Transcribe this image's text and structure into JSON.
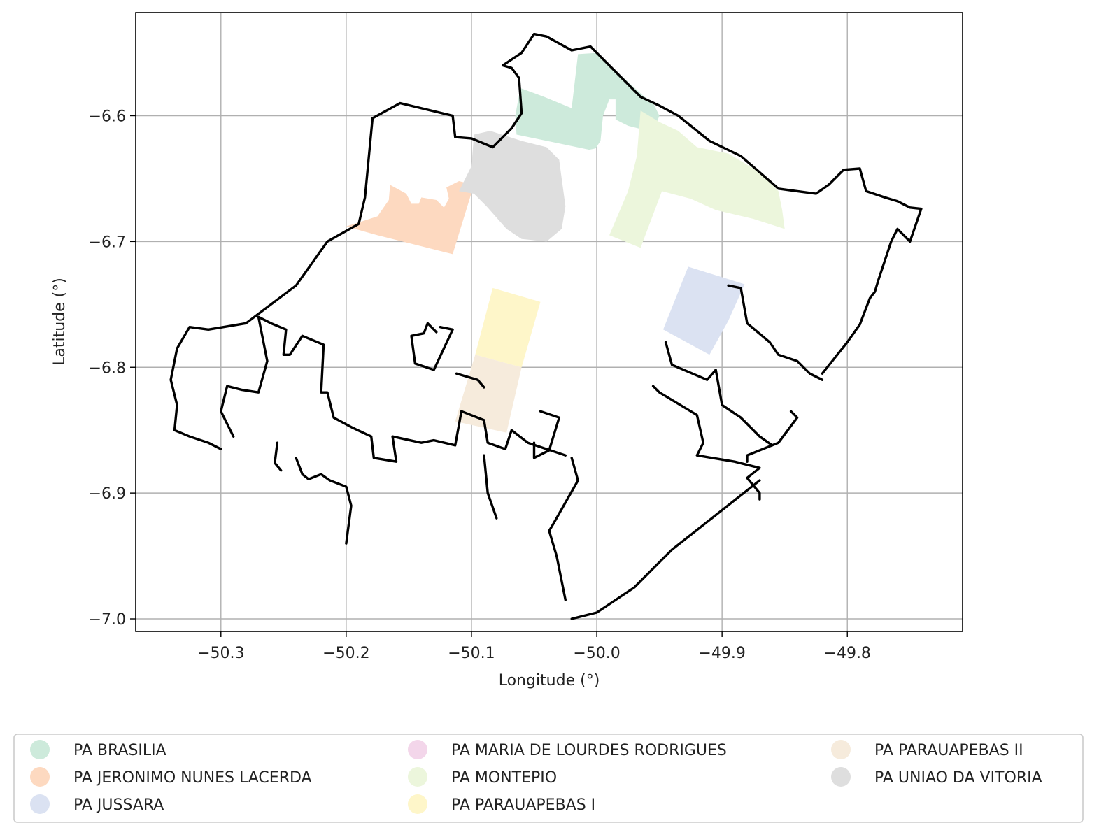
{
  "figure": {
    "xlabel": "Longitude (°)",
    "ylabel": "Latitude (°)"
  },
  "chart_data": {
    "type": "choropleth-map",
    "xlim": [
      -50.368,
      -49.708
    ],
    "ylim": [
      -7.01,
      -6.518
    ],
    "grid": true,
    "legend_placement": "bottom (below plot, 3 columns)",
    "x_ticks": [
      {
        "value": -50.3,
        "label": "−50.3"
      },
      {
        "value": -50.2,
        "label": "−50.2"
      },
      {
        "value": -50.1,
        "label": "−50.1"
      },
      {
        "value": -50.0,
        "label": "−50.0"
      },
      {
        "value": -49.9,
        "label": "−49.9"
      },
      {
        "value": -49.8,
        "label": "−49.8"
      }
    ],
    "y_ticks": [
      {
        "value": -6.6,
        "label": "−6.6"
      },
      {
        "value": -6.7,
        "label": "−6.7"
      },
      {
        "value": -6.8,
        "label": "−6.8"
      },
      {
        "value": -6.9,
        "label": "−6.9"
      },
      {
        "value": -7.0,
        "label": "−7.0"
      }
    ],
    "regions": [
      {
        "name": "PA BRASILIA",
        "color": "#cdeadb",
        "polygons": [
          [
            [
              -50.061,
              -6.578
            ],
            [
              -50.042,
              -6.585
            ],
            [
              -50.02,
              -6.594
            ],
            [
              -50.015,
              -6.551
            ],
            [
              -50.0,
              -6.55
            ],
            [
              -49.985,
              -6.564
            ],
            [
              -49.963,
              -6.584
            ],
            [
              -49.955,
              -6.59
            ],
            [
              -49.95,
              -6.6
            ],
            [
              -49.955,
              -6.613
            ],
            [
              -49.975,
              -6.608
            ],
            [
              -49.985,
              -6.603
            ],
            [
              -49.985,
              -6.587
            ],
            [
              -49.99,
              -6.587
            ],
            [
              -49.995,
              -6.6
            ],
            [
              -49.997,
              -6.62
            ],
            [
              -50.001,
              -6.626
            ],
            [
              -50.006,
              -6.627
            ],
            [
              -50.03,
              -6.622
            ],
            [
              -50.064,
              -6.615
            ],
            [
              -50.065,
              -6.6
            ]
          ]
        ]
      },
      {
        "name": "PA JERONIMO NUNES LACERDA",
        "color": "#fdd9c0",
        "polygons": [
          [
            [
              -50.165,
              -6.655
            ],
            [
              -50.152,
              -6.662
            ],
            [
              -50.148,
              -6.67
            ],
            [
              -50.142,
              -6.67
            ],
            [
              -50.14,
              -6.665
            ],
            [
              -50.128,
              -6.667
            ],
            [
              -50.122,
              -6.673
            ],
            [
              -50.118,
              -6.666
            ],
            [
              -50.12,
              -6.657
            ],
            [
              -50.11,
              -6.652
            ],
            [
              -50.098,
              -6.655
            ],
            [
              -50.115,
              -6.71
            ],
            [
              -50.175,
              -6.695
            ],
            [
              -50.2,
              -6.688
            ],
            [
              -50.175,
              -6.68
            ],
            [
              -50.166,
              -6.667
            ]
          ]
        ]
      },
      {
        "name": "PA JUSSARA",
        "color": "#dbe2f2",
        "polygons": [
          [
            [
              -49.927,
              -6.72
            ],
            [
              -49.947,
              -6.77
            ],
            [
              -49.91,
              -6.79
            ],
            [
              -49.895,
              -6.763
            ],
            [
              -49.882,
              -6.734
            ]
          ]
        ]
      },
      {
        "name": "PA MARIA DE LOURDES RODRIGUES",
        "color": "#f3d6ea",
        "polygons": []
      },
      {
        "name": "PA MONTEPIO",
        "color": "#ecf6dc",
        "polygons": [
          [
            [
              -49.965,
              -6.596
            ],
            [
              -49.95,
              -6.605
            ],
            [
              -49.935,
              -6.612
            ],
            [
              -49.92,
              -6.625
            ],
            [
              -49.895,
              -6.63
            ],
            [
              -49.87,
              -6.645
            ],
            [
              -49.855,
              -6.66
            ],
            [
              -49.852,
              -6.675
            ],
            [
              -49.85,
              -6.69
            ],
            [
              -49.875,
              -6.682
            ],
            [
              -49.905,
              -6.675
            ],
            [
              -49.925,
              -6.666
            ],
            [
              -49.948,
              -6.66
            ],
            [
              -49.965,
              -6.705
            ],
            [
              -49.99,
              -6.695
            ],
            [
              -49.975,
              -6.66
            ],
            [
              -49.968,
              -6.632
            ]
          ]
        ]
      },
      {
        "name": "PA PARAUAPEBAS I",
        "color": "#fef6c9",
        "polygons": [
          [
            [
              -50.083,
              -6.737
            ],
            [
              -50.045,
              -6.748
            ],
            [
              -50.06,
              -6.8
            ],
            [
              -50.097,
              -6.79
            ]
          ]
        ]
      },
      {
        "name": "PA PARAUAPEBAS II",
        "color": "#f6ebdc",
        "polygons": [
          [
            [
              -50.097,
              -6.79
            ],
            [
              -50.06,
              -6.8
            ],
            [
              -50.072,
              -6.852
            ],
            [
              -50.113,
              -6.843
            ]
          ]
        ]
      },
      {
        "name": "PA UNIAO DA VITORIA",
        "color": "#dedede",
        "polygons": [
          [
            [
              -50.098,
              -6.615
            ],
            [
              -50.085,
              -6.612
            ],
            [
              -50.06,
              -6.62
            ],
            [
              -50.04,
              -6.625
            ],
            [
              -50.03,
              -6.635
            ],
            [
              -50.028,
              -6.65
            ],
            [
              -50.025,
              -6.672
            ],
            [
              -50.028,
              -6.69
            ],
            [
              -50.04,
              -6.7
            ],
            [
              -50.06,
              -6.698
            ],
            [
              -50.072,
              -6.69
            ],
            [
              -50.088,
              -6.672
            ],
            [
              -50.098,
              -6.662
            ],
            [
              -50.11,
              -6.66
            ],
            [
              -50.1,
              -6.64
            ]
          ]
        ]
      }
    ],
    "boundary": {
      "color": "#000000",
      "lines": [
        [
          [
            -50.179,
            -6.602
          ],
          [
            -50.157,
            -6.59
          ],
          [
            -50.115,
            -6.6
          ],
          [
            -50.113,
            -6.617
          ],
          [
            -50.1,
            -6.618
          ],
          [
            -50.083,
            -6.625
          ],
          [
            -50.068,
            -6.61
          ],
          [
            -50.06,
            -6.598
          ],
          [
            -50.062,
            -6.57
          ],
          [
            -50.068,
            -6.562
          ],
          [
            -50.075,
            -6.56
          ],
          [
            -50.06,
            -6.55
          ],
          [
            -50.05,
            -6.535
          ],
          [
            -50.04,
            -6.537
          ],
          [
            -50.02,
            -6.548
          ],
          [
            -50.005,
            -6.545
          ],
          [
            -49.985,
            -6.565
          ],
          [
            -49.965,
            -6.585
          ],
          [
            -49.95,
            -6.592
          ],
          [
            -49.935,
            -6.6
          ],
          [
            -49.91,
            -6.62
          ],
          [
            -49.885,
            -6.632
          ],
          [
            -49.87,
            -6.645
          ],
          [
            -49.855,
            -6.658
          ],
          [
            -49.84,
            -6.66
          ],
          [
            -49.825,
            -6.662
          ],
          [
            -49.815,
            -6.655
          ],
          [
            -49.803,
            -6.643
          ],
          [
            -49.79,
            -6.642
          ],
          [
            -49.785,
            -6.66
          ],
          [
            -49.77,
            -6.665
          ],
          [
            -49.76,
            -6.668
          ],
          [
            -49.75,
            -6.673
          ],
          [
            -49.741,
            -6.674
          ],
          [
            -49.75,
            -6.7
          ],
          [
            -49.76,
            -6.69
          ],
          [
            -49.765,
            -6.7
          ],
          [
            -49.775,
            -6.73
          ],
          [
            -49.778,
            -6.74
          ],
          [
            -49.782,
            -6.745
          ],
          [
            -49.79,
            -6.766
          ],
          [
            -49.8,
            -6.78
          ],
          [
            -49.82,
            -6.805
          ]
        ],
        [
          [
            -50.179,
            -6.602
          ],
          [
            -50.185,
            -6.665
          ],
          [
            -50.19,
            -6.686
          ],
          [
            -50.215,
            -6.7
          ],
          [
            -50.24,
            -6.735
          ],
          [
            -50.26,
            -6.75
          ],
          [
            -50.28,
            -6.765
          ],
          [
            -50.31,
            -6.77
          ],
          [
            -50.325,
            -6.768
          ],
          [
            -50.335,
            -6.785
          ],
          [
            -50.34,
            -6.81
          ],
          [
            -50.335,
            -6.83
          ],
          [
            -50.337,
            -6.85
          ],
          [
            -50.325,
            -6.855
          ],
          [
            -50.31,
            -6.86
          ],
          [
            -50.3,
            -6.865
          ]
        ],
        [
          [
            -50.27,
            -6.76
          ],
          [
            -50.26,
            -6.765
          ],
          [
            -50.248,
            -6.77
          ],
          [
            -50.25,
            -6.79
          ],
          [
            -50.245,
            -6.79
          ],
          [
            -50.235,
            -6.775
          ],
          [
            -50.218,
            -6.782
          ],
          [
            -50.22,
            -6.82
          ],
          [
            -50.215,
            -6.82
          ],
          [
            -50.21,
            -6.84
          ],
          [
            -50.195,
            -6.848
          ],
          [
            -50.18,
            -6.855
          ],
          [
            -50.178,
            -6.872
          ],
          [
            -50.16,
            -6.875
          ],
          [
            -50.163,
            -6.855
          ],
          [
            -50.14,
            -6.86
          ],
          [
            -50.13,
            -6.858
          ],
          [
            -50.113,
            -6.862
          ],
          [
            -50.108,
            -6.835
          ],
          [
            -50.09,
            -6.842
          ],
          [
            -50.087,
            -6.86
          ],
          [
            -50.073,
            -6.865
          ],
          [
            -50.068,
            -6.85
          ],
          [
            -50.055,
            -6.86
          ],
          [
            -50.04,
            -6.865
          ],
          [
            -50.025,
            -6.87
          ]
        ],
        [
          [
            -50.27,
            -6.76
          ],
          [
            -50.263,
            -6.795
          ],
          [
            -50.27,
            -6.82
          ],
          [
            -50.283,
            -6.818
          ],
          [
            -50.295,
            -6.815
          ],
          [
            -50.3,
            -6.835
          ],
          [
            -50.29,
            -6.855
          ]
        ],
        [
          [
            -50.255,
            -6.86
          ],
          [
            -50.257,
            -6.876
          ],
          [
            -50.252,
            -6.882
          ]
        ],
        [
          [
            -50.24,
            -6.872
          ],
          [
            -50.235,
            -6.885
          ],
          [
            -50.23,
            -6.889
          ],
          [
            -50.22,
            -6.885
          ],
          [
            -50.213,
            -6.89
          ],
          [
            -50.2,
            -6.895
          ],
          [
            -50.196,
            -6.91
          ],
          [
            -50.2,
            -6.94
          ]
        ],
        [
          [
            -50.125,
            -6.768
          ],
          [
            -50.115,
            -6.77
          ],
          [
            -50.13,
            -6.802
          ],
          [
            -50.145,
            -6.797
          ],
          [
            -50.148,
            -6.775
          ],
          [
            -50.138,
            -6.773
          ],
          [
            -50.135,
            -6.765
          ],
          [
            -50.128,
            -6.772
          ]
        ],
        [
          [
            -50.112,
            -6.805
          ],
          [
            -50.095,
            -6.81
          ],
          [
            -50.09,
            -6.816
          ]
        ],
        [
          [
            -50.045,
            -6.835
          ],
          [
            -50.03,
            -6.84
          ],
          [
            -50.038,
            -6.866
          ],
          [
            -50.05,
            -6.872
          ],
          [
            -50.05,
            -6.86
          ]
        ],
        [
          [
            -50.09,
            -6.87
          ],
          [
            -50.087,
            -6.9
          ],
          [
            -50.08,
            -6.92
          ]
        ],
        [
          [
            -50.02,
            -6.872
          ],
          [
            -50.015,
            -6.89
          ],
          [
            -50.035,
            -6.925
          ],
          [
            -50.038,
            -6.93
          ],
          [
            -50.032,
            -6.95
          ],
          [
            -50.025,
            -6.985
          ]
        ],
        [
          [
            -49.895,
            -6.735
          ],
          [
            -49.885,
            -6.737
          ],
          [
            -49.88,
            -6.765
          ],
          [
            -49.862,
            -6.78
          ],
          [
            -49.855,
            -6.79
          ],
          [
            -49.84,
            -6.795
          ],
          [
            -49.83,
            -6.805
          ],
          [
            -49.82,
            -6.81
          ]
        ],
        [
          [
            -49.945,
            -6.78
          ],
          [
            -49.94,
            -6.798
          ],
          [
            -49.912,
            -6.81
          ],
          [
            -49.905,
            -6.802
          ],
          [
            -49.9,
            -6.83
          ],
          [
            -49.885,
            -6.84
          ],
          [
            -49.87,
            -6.855
          ],
          [
            -49.86,
            -6.862
          ]
        ],
        [
          [
            -49.955,
            -6.815
          ],
          [
            -49.95,
            -6.82
          ],
          [
            -49.92,
            -6.838
          ],
          [
            -49.915,
            -6.86
          ],
          [
            -49.92,
            -6.87
          ],
          [
            -49.89,
            -6.875
          ],
          [
            -49.87,
            -6.88
          ],
          [
            -49.88,
            -6.888
          ],
          [
            -49.87,
            -6.9
          ],
          [
            -49.87,
            -6.905
          ]
        ],
        [
          [
            -49.845,
            -6.835
          ],
          [
            -49.84,
            -6.84
          ],
          [
            -49.855,
            -6.86
          ],
          [
            -49.88,
            -6.87
          ],
          [
            -49.88,
            -6.875
          ]
        ],
        [
          [
            -49.87,
            -6.89
          ],
          [
            -49.94,
            -6.945
          ],
          [
            -49.97,
            -6.975
          ],
          [
            -50.0,
            -6.995
          ],
          [
            -50.02,
            -7.0
          ]
        ]
      ]
    }
  },
  "legend": {
    "items": [
      {
        "label": "PA BRASILIA",
        "color": "#cdeadb"
      },
      {
        "label": "PA JERONIMO NUNES LACERDA",
        "color": "#fdd9c0"
      },
      {
        "label": "PA JUSSARA",
        "color": "#dbe2f2"
      },
      {
        "label": "PA MARIA DE LOURDES RODRIGUES",
        "color": "#f3d6ea"
      },
      {
        "label": "PA MONTEPIO",
        "color": "#ecf6dc"
      },
      {
        "label": "PA PARAUAPEBAS I",
        "color": "#fef6c9"
      },
      {
        "label": "PA PARAUAPEBAS II",
        "color": "#f6ebdc"
      },
      {
        "label": "PA UNIAO DA VITORIA",
        "color": "#dedede"
      }
    ]
  }
}
